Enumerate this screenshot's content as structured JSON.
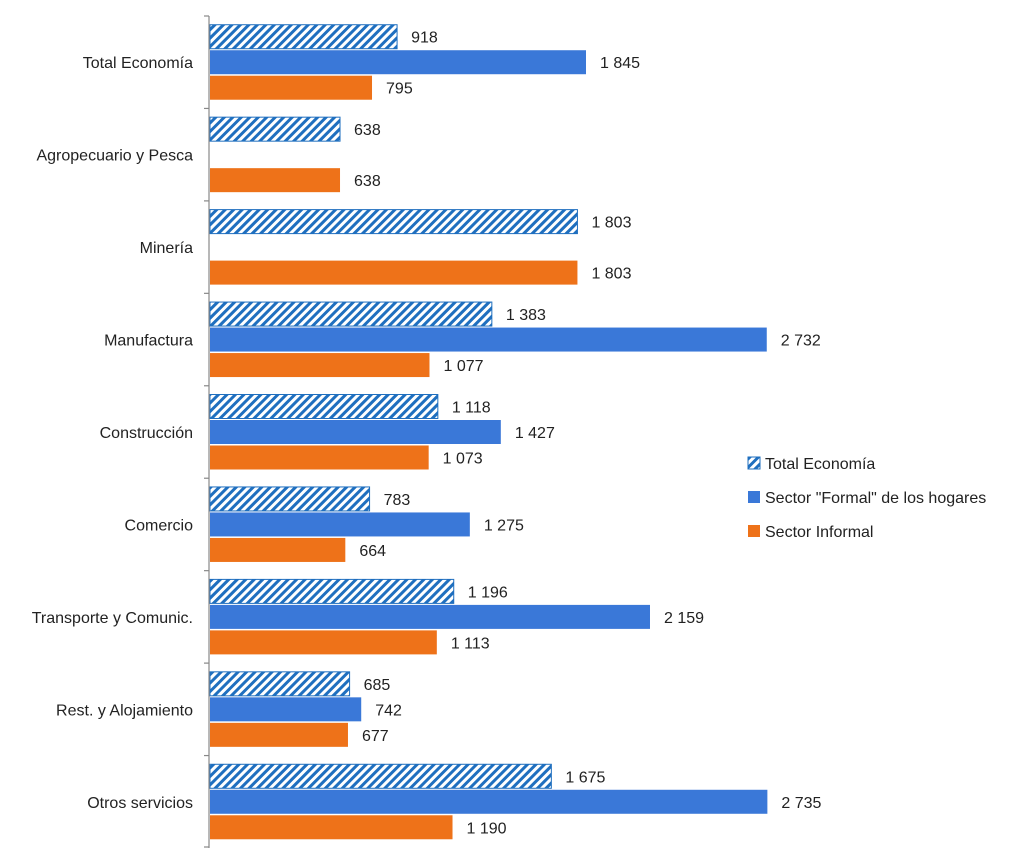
{
  "chart_data": {
    "type": "bar",
    "orientation": "horizontal",
    "categories": [
      "Total Economía",
      "Agropecuario y Pesca",
      "Minería",
      "Manufactura",
      "Construcción",
      "Comercio",
      "Transporte y Comunic.",
      "Rest. y Alojamiento",
      "Otros servicios"
    ],
    "series": [
      {
        "name": "Total Economía",
        "color": "#1f6fbf",
        "pattern": "diagonal-hatch",
        "values": [
          918,
          638,
          1803,
          1383,
          1118,
          783,
          1196,
          685,
          1675
        ],
        "labels": [
          "918",
          "638",
          "1 803",
          "1 383",
          "1 118",
          "783",
          "1 196",
          "685",
          "1 675"
        ]
      },
      {
        "name": "Sector \"Formal\" de los hogares",
        "color": "#3a78d8",
        "values": [
          1845,
          null,
          null,
          2732,
          1427,
          1275,
          2159,
          742,
          2735
        ],
        "labels": [
          "1 845",
          "",
          "",
          "2 732",
          "1 427",
          "1 275",
          "2 159",
          "742",
          "2 735"
        ]
      },
      {
        "name": "Sector Informal",
        "color": "#ee7219",
        "values": [
          795,
          638,
          1803,
          1077,
          1073,
          664,
          1113,
          677,
          1190
        ],
        "labels": [
          "795",
          "638",
          "1 803",
          "1 077",
          "1 073",
          "664",
          "1 113",
          "677",
          "1 190"
        ]
      }
    ],
    "title": "",
    "xlabel": "",
    "ylabel": "",
    "xlim": [
      0,
      3000
    ],
    "grid": false,
    "legend_position": "right"
  }
}
